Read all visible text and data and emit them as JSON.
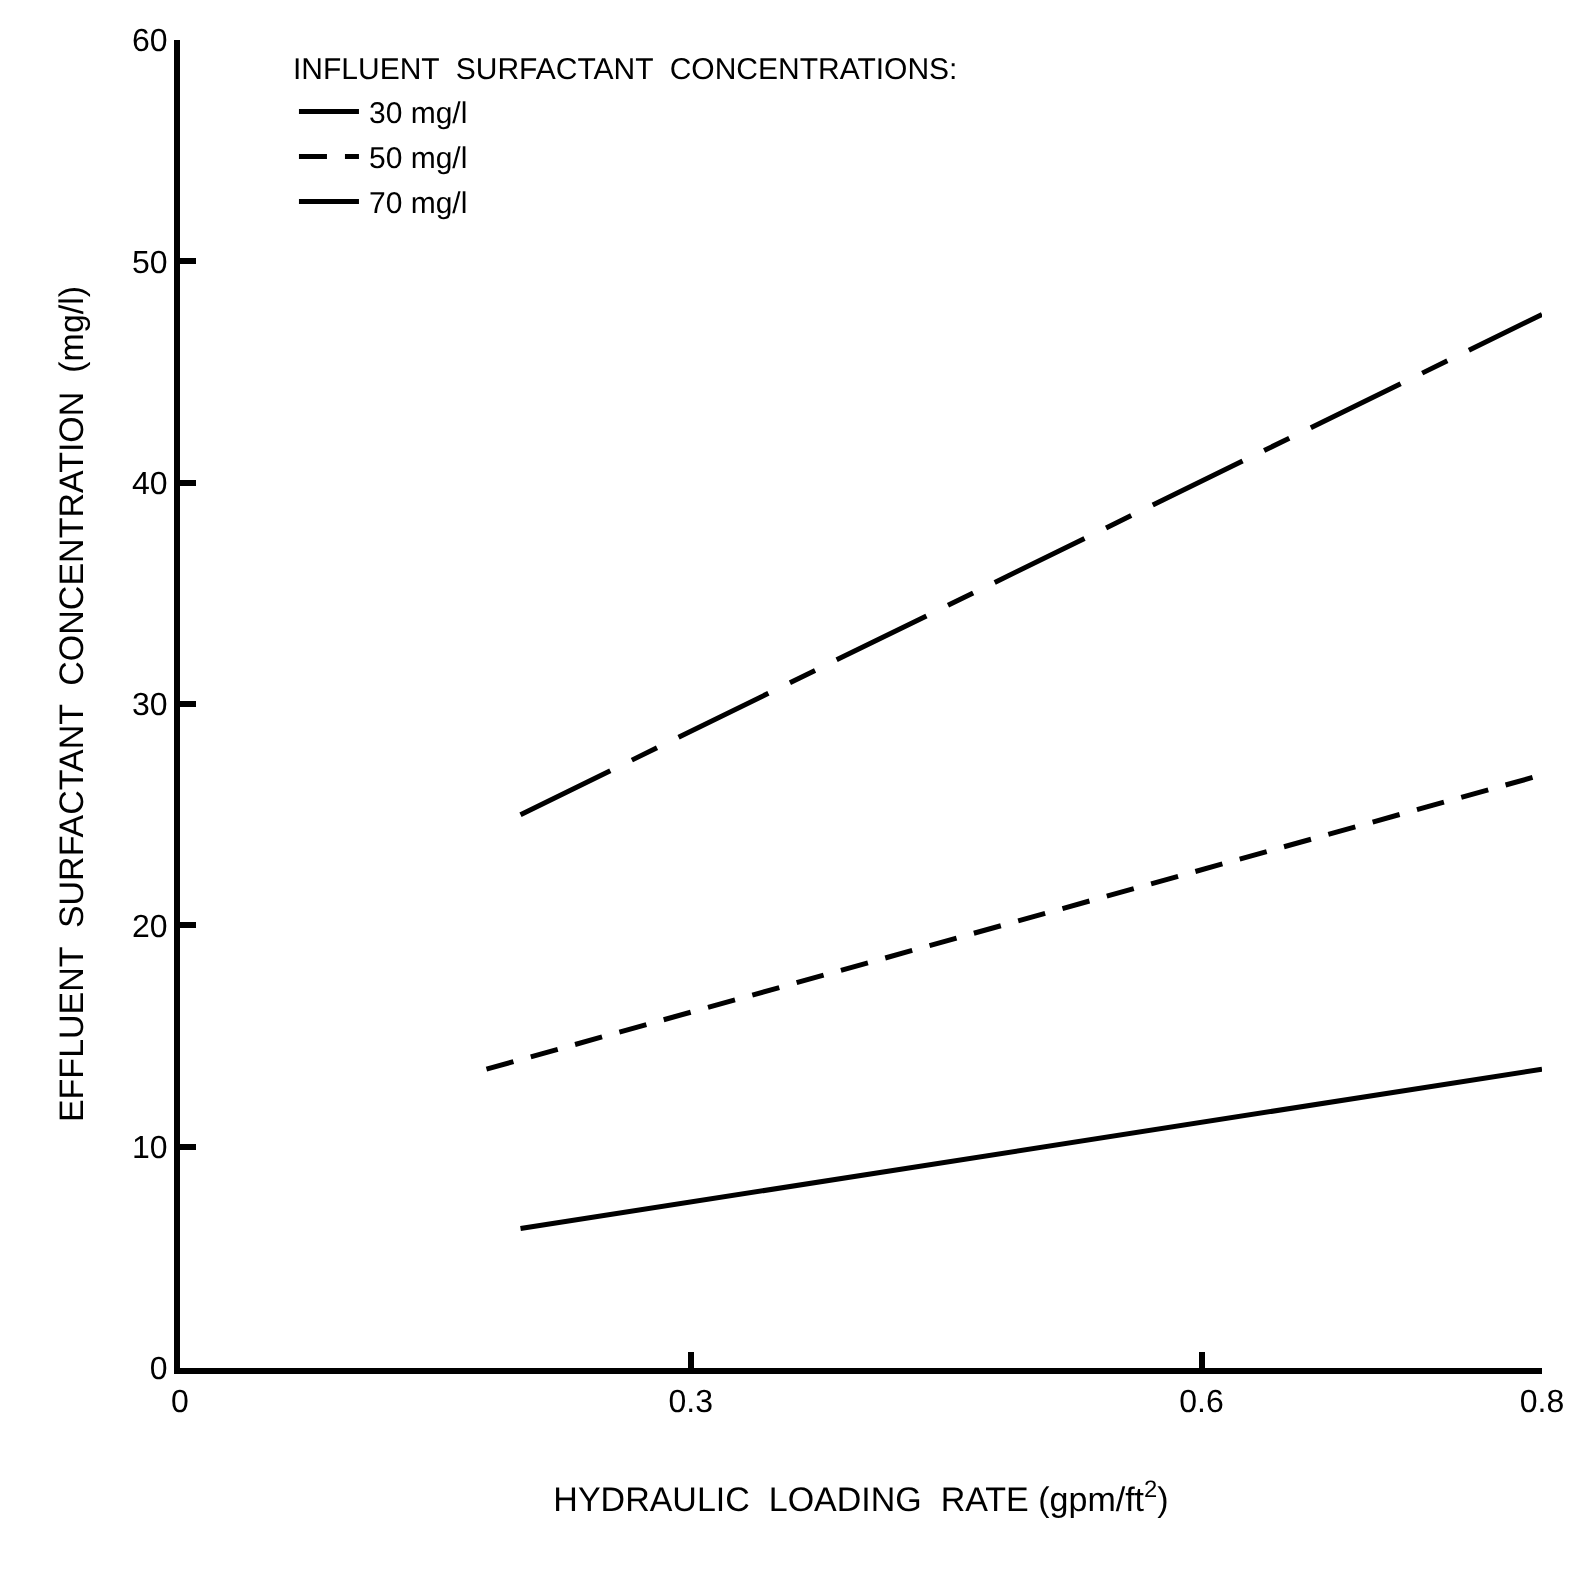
{
  "chart_data": {
    "type": "line",
    "xlabel": "HYDRAULIC  LOADING  RATE (gpm/ft$^{2}$)",
    "ylabel": "EFFLUENT  SURFACTANT  CONCENTRATION  (mg/l)",
    "legend_title": "INFLUENT  SURFACTANT  CONCENTRATIONS:",
    "legend": "top left",
    "xlim": [
      0,
      0.8
    ],
    "xticks": [
      0,
      0.3,
      0.6,
      0.8
    ],
    "ylim": [
      0,
      60
    ],
    "yticks": [
      0,
      10,
      20,
      30,
      40,
      50,
      60
    ],
    "grid": false,
    "series": [
      {
        "name": "30 mg/l",
        "color": "#000000",
        "line_style": "solid",
        "x": [
          0.2,
          0.8
        ],
        "values": [
          6.3,
          13.5
        ]
      },
      {
        "name": "50 mg/l",
        "color": "#000000",
        "line_style": "dashed",
        "x": [
          0.18,
          0.8
        ],
        "values": [
          13.5,
          26.8
        ]
      },
      {
        "name": "70 mg/l",
        "color": "#000000",
        "line_style": "dashdot",
        "x": [
          0.2,
          0.8
        ],
        "values": [
          25.0,
          47.6
        ]
      }
    ]
  }
}
